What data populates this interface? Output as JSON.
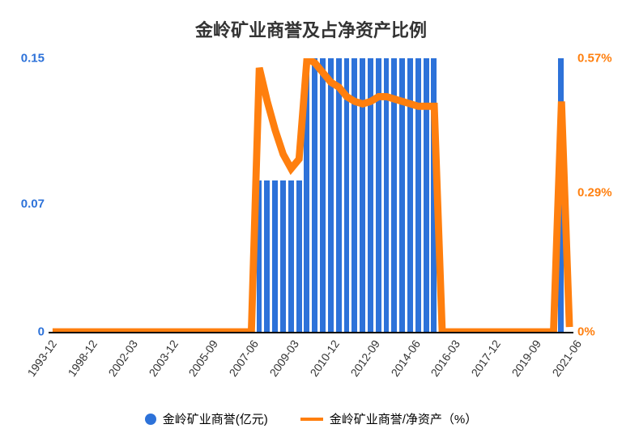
{
  "title": "金岭矿业商誉及占净资产比例",
  "title_fontsize": 22,
  "title_color": "#333333",
  "background_color": "#ffffff",
  "axis_color": "#000000",
  "bar_color": "#2d72d9",
  "line_color": "#ff7f0e",
  "y_left": {
    "color": "#2d72d9",
    "fontsize": 15,
    "max": 0.15,
    "ticks": [
      {
        "v": 0,
        "label": "0"
      },
      {
        "v": 0.07,
        "label": "0.07"
      },
      {
        "v": 0.15,
        "label": "0.15"
      }
    ]
  },
  "y_right": {
    "color": "#ff7f0e",
    "fontsize": 15,
    "max": 0.57,
    "ticks": [
      {
        "v": 0,
        "label": "0%"
      },
      {
        "v": 0.29,
        "label": "0.29%"
      },
      {
        "v": 0.57,
        "label": "0.57%"
      }
    ]
  },
  "x_labels": [
    "1993-12",
    "1998-12",
    "2002-03",
    "2003-12",
    "2005-09",
    "2007-06",
    "2009-03",
    "2010-12",
    "2012-09",
    "2014-06",
    "2016-03",
    "2017-12",
    "2019-09",
    "2021-06"
  ],
  "x_fontsize": 14,
  "bars": [
    0,
    0,
    0,
    0,
    0,
    0,
    0,
    0,
    0,
    0,
    0,
    0,
    0,
    0,
    0,
    0,
    0,
    0,
    0,
    0,
    0,
    0,
    0,
    0,
    0,
    0,
    0.083,
    0.083,
    0.083,
    0.083,
    0.083,
    0.083,
    0.15,
    0.15,
    0.15,
    0.15,
    0.15,
    0.15,
    0.15,
    0.15,
    0.15,
    0.15,
    0.15,
    0.15,
    0.15,
    0.15,
    0.15,
    0.15,
    0.15,
    0,
    0,
    0,
    0,
    0,
    0,
    0,
    0,
    0,
    0,
    0,
    0,
    0,
    0,
    0,
    0.15,
    0
  ],
  "line": [
    0,
    0,
    0,
    0,
    0,
    0,
    0,
    0,
    0,
    0,
    0,
    0,
    0,
    0,
    0,
    0,
    0,
    0,
    0,
    0,
    0,
    0,
    0,
    0,
    0,
    0,
    0.55,
    0.48,
    0.42,
    0.37,
    0.34,
    0.36,
    0.57,
    0.56,
    0.54,
    0.52,
    0.51,
    0.49,
    0.48,
    0.475,
    0.48,
    0.49,
    0.49,
    0.485,
    0.48,
    0.475,
    0.47,
    0.47,
    0.47,
    0,
    0,
    0,
    0,
    0,
    0,
    0,
    0,
    0,
    0,
    0,
    0,
    0,
    0,
    0,
    0.48,
    0.01
  ],
  "line_width": 3,
  "legend": {
    "bar": {
      "label": "金岭矿业商誉(亿元)",
      "color": "#2d72d9"
    },
    "line": {
      "label": "金岭矿业商誉/净资产（%）",
      "color": "#ff7f0e"
    },
    "fontsize": 15
  }
}
